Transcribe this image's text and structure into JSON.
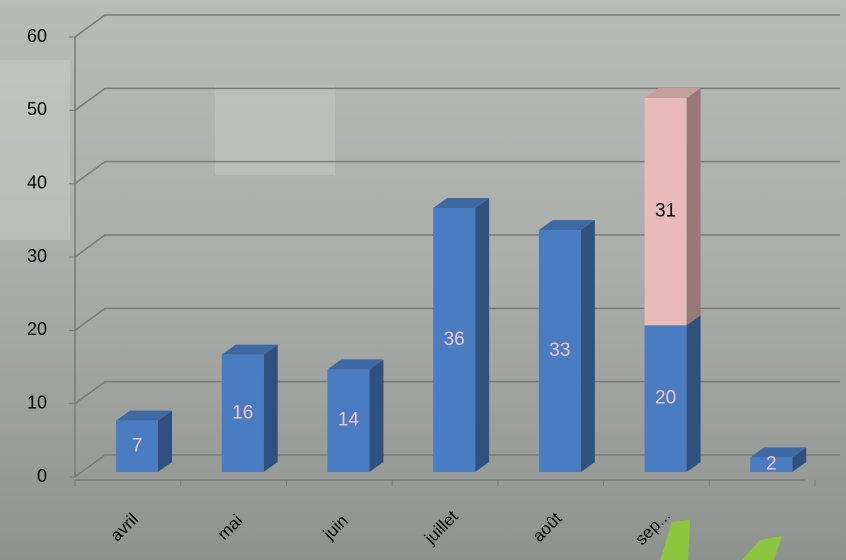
{
  "chart_data": {
    "type": "bar3d_stacked",
    "categories": [
      "avril",
      "mai",
      "juin",
      "juillet",
      "août",
      "sep...",
      null
    ],
    "series": [
      {
        "color": "#4a7cc2",
        "label_color": "#f2c4c4",
        "values": [
          7,
          16,
          14,
          36,
          33,
          20,
          2
        ]
      },
      {
        "color": "#e8baba",
        "label_color": "#000000",
        "values": [
          null,
          null,
          null,
          null,
          null,
          31,
          null
        ]
      }
    ],
    "ylim": [
      0,
      60
    ],
    "yticks": [
      0,
      10,
      20,
      30,
      40,
      50,
      60
    ],
    "grid": true
  }
}
